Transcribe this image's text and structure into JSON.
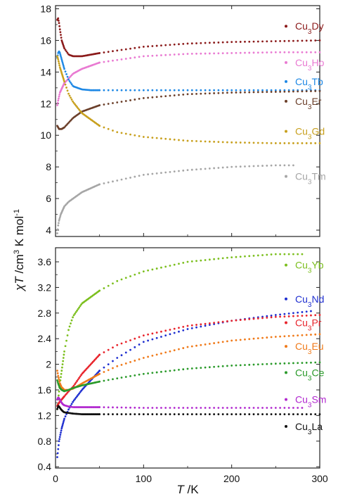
{
  "chart_data": [
    {
      "panel": "top",
      "type": "scatter",
      "ylim": [
        3.6,
        18.2
      ],
      "xlim": [
        0,
        300
      ],
      "yticks": [
        4,
        6,
        8,
        10,
        12,
        14,
        16,
        18
      ],
      "series": [
        {
          "name": "Cu3Dy",
          "sub": "3",
          "pre": "Cu",
          "post": "Dy",
          "color": "#8b1a1a",
          "x": [
            2,
            3,
            4,
            5,
            7,
            10,
            15,
            20,
            30,
            40,
            50,
            100,
            150,
            200,
            250,
            300
          ],
          "y": [
            17.3,
            17.4,
            17.1,
            16.7,
            16.0,
            15.5,
            15.1,
            15.0,
            15.0,
            15.1,
            15.2,
            15.6,
            15.8,
            15.9,
            15.95,
            16.0
          ]
        },
        {
          "name": "Cu3Ho",
          "sub": "3",
          "pre": "Cu",
          "post": "Ho",
          "color": "#e97ad2",
          "x": [
            2,
            3,
            5,
            10,
            20,
            30,
            50,
            100,
            150,
            200,
            250,
            300
          ],
          "y": [
            11.9,
            12.2,
            12.7,
            13.3,
            13.9,
            14.2,
            14.6,
            15.0,
            15.15,
            15.2,
            15.25,
            15.25
          ]
        },
        {
          "name": "Cu3Tb",
          "sub": "3",
          "pre": "Cu",
          "post": "Tb",
          "color": "#1e88e5",
          "x": [
            2,
            3,
            4,
            5,
            7,
            10,
            15,
            20,
            30,
            40,
            50,
            70,
            100,
            150,
            200,
            250,
            300
          ],
          "y": [
            14.9,
            15.2,
            15.3,
            15.2,
            14.8,
            14.2,
            13.5,
            13.1,
            12.9,
            12.85,
            12.85,
            12.85,
            12.85,
            12.85,
            12.85,
            12.85,
            12.85
          ]
        },
        {
          "name": "Cu3Er",
          "sub": "3",
          "pre": "Cu",
          "post": "Er",
          "color": "#6b3f2a",
          "x": [
            2,
            4,
            7,
            10,
            15,
            20,
            30,
            40,
            50,
            100,
            150,
            200,
            250,
            300
          ],
          "y": [
            10.6,
            10.4,
            10.4,
            10.5,
            10.8,
            11.1,
            11.5,
            11.7,
            11.9,
            12.35,
            12.6,
            12.7,
            12.75,
            12.8
          ]
        },
        {
          "name": "Cu3Gd",
          "sub": "3",
          "pre": "Cu",
          "post": "Gd",
          "color": "#c8a01e",
          "x": [
            2,
            3,
            5,
            10,
            15,
            20,
            30,
            50,
            70,
            100,
            150,
            200,
            250,
            300
          ],
          "y": [
            15.0,
            14.8,
            14.3,
            13.4,
            12.6,
            12.1,
            11.4,
            10.6,
            10.2,
            9.9,
            9.65,
            9.55,
            9.5,
            9.5
          ]
        },
        {
          "name": "Cu3Tm",
          "sub": "3",
          "pre": "Cu",
          "post": "Tm",
          "color": "#a6a6a6",
          "x": [
            2,
            3,
            4,
            6,
            10,
            15,
            20,
            30,
            50,
            100,
            150,
            200,
            250,
            270
          ],
          "y": [
            3.8,
            4.3,
            4.6,
            5.0,
            5.5,
            5.8,
            6.0,
            6.4,
            6.9,
            7.5,
            7.8,
            8.0,
            8.1,
            8.1
          ]
        }
      ],
      "legend": [
        {
          "key": "Cu3Dy",
          "y": 16.9
        },
        {
          "key": "Cu3Ho",
          "y": 14.6
        },
        {
          "key": "Cu3Tb",
          "y": 13.4
        },
        {
          "key": "Cu3Er",
          "y": 12.15
        },
        {
          "key": "Cu3Gd",
          "y": 10.25
        },
        {
          "key": "Cu3Tm",
          "y": 7.4
        }
      ]
    },
    {
      "panel": "bottom",
      "type": "scatter",
      "ylim": [
        0.38,
        3.82
      ],
      "xlim": [
        0,
        300
      ],
      "yticks": [
        0.4,
        0.8,
        1.2,
        1.6,
        2,
        2.4,
        2.8,
        3.2,
        3.6
      ],
      "xticks": [
        0,
        100,
        200,
        300
      ],
      "series": [
        {
          "name": "Cu3Yb",
          "sub": "3",
          "pre": "Cu",
          "post": "Yb",
          "color": "#7cbf1e",
          "x": [
            2,
            3,
            5,
            10,
            15,
            20,
            30,
            40,
            50,
            70,
            100,
            150,
            200,
            250,
            280
          ],
          "y": [
            1.3,
            1.45,
            1.7,
            2.2,
            2.55,
            2.75,
            2.95,
            3.05,
            3.15,
            3.3,
            3.45,
            3.6,
            3.67,
            3.72,
            3.72
          ]
        },
        {
          "name": "Cu3Nd",
          "sub": "3",
          "pre": "Cu",
          "post": "Nd",
          "color": "#1f2fd0",
          "x": [
            2,
            4,
            7,
            10,
            15,
            20,
            30,
            50,
            70,
            100,
            150,
            200,
            250,
            290
          ],
          "y": [
            0.55,
            0.8,
            1.0,
            1.15,
            1.3,
            1.42,
            1.6,
            1.9,
            2.1,
            2.35,
            2.55,
            2.68,
            2.77,
            2.83
          ]
        },
        {
          "name": "Cu3Pr",
          "sub": "3",
          "pre": "Cu",
          "post": "Pr",
          "color": "#e8242c",
          "x": [
            2,
            4,
            7,
            10,
            15,
            20,
            30,
            50,
            70,
            100,
            150,
            200,
            250,
            300
          ],
          "y": [
            1.35,
            1.4,
            1.45,
            1.5,
            1.58,
            1.65,
            1.85,
            2.15,
            2.3,
            2.45,
            2.6,
            2.68,
            2.74,
            2.77
          ]
        },
        {
          "name": "Cu3Eu",
          "sub": "3",
          "pre": "Cu",
          "post": "Eu",
          "color": "#f07a1a",
          "x": [
            2,
            3,
            5,
            7,
            10,
            15,
            20,
            30,
            50,
            70,
            100,
            150,
            200,
            250,
            300
          ],
          "y": [
            1.9,
            1.82,
            1.7,
            1.64,
            1.6,
            1.6,
            1.62,
            1.7,
            1.85,
            1.97,
            2.1,
            2.27,
            2.37,
            2.43,
            2.47
          ]
        },
        {
          "name": "Cu3Ce",
          "sub": "3",
          "pre": "Cu",
          "post": "Ce",
          "color": "#2a9a2a",
          "x": [
            2,
            3,
            5,
            7,
            10,
            15,
            20,
            30,
            50,
            70,
            100,
            150,
            200,
            250,
            300
          ],
          "y": [
            1.75,
            1.7,
            1.63,
            1.6,
            1.58,
            1.6,
            1.63,
            1.67,
            1.73,
            1.78,
            1.85,
            1.93,
            1.98,
            2.01,
            2.03
          ]
        },
        {
          "name": "Cu3Sm",
          "sub": "3",
          "pre": "Cu",
          "post": "Sm",
          "color": "#b128cf",
          "x": [
            2,
            3,
            4,
            6,
            8,
            10,
            15,
            20,
            30,
            50,
            100,
            150,
            200,
            250,
            280
          ],
          "y": [
            1.45,
            1.48,
            1.47,
            1.42,
            1.38,
            1.36,
            1.34,
            1.33,
            1.33,
            1.33,
            1.32,
            1.32,
            1.32,
            1.32,
            1.32
          ]
        },
        {
          "name": "Cu3La",
          "sub": "3",
          "pre": "Cu",
          "post": "La",
          "color": "#111111",
          "x": [
            2,
            3,
            4,
            6,
            8,
            10,
            15,
            20,
            30,
            50,
            100,
            150,
            200,
            250,
            300
          ],
          "y": [
            1.3,
            1.35,
            1.34,
            1.3,
            1.27,
            1.25,
            1.24,
            1.23,
            1.22,
            1.22,
            1.22,
            1.22,
            1.22,
            1.22,
            1.22
          ]
        }
      ],
      "legend": [
        {
          "key": "Cu3Yb",
          "y": 3.55
        },
        {
          "key": "Cu3Nd",
          "y": 3.02
        },
        {
          "key": "Cu3Pr",
          "y": 2.65
        },
        {
          "key": "Cu3Eu",
          "y": 2.28
        },
        {
          "key": "Cu3Ce",
          "y": 1.87
        },
        {
          "key": "Cu3Sm",
          "y": 1.45
        },
        {
          "key": "Cu3La",
          "y": 1.03
        }
      ]
    }
  ],
  "axes": {
    "ylabel_pre": "χ",
    "ylabel_T": "T",
    "ylabel_mid": " /cm",
    "ylabel_sup3": "3",
    "ylabel_mid2": " K mol",
    "ylabel_supm1": "-1",
    "xlabel_T": "T",
    "xlabel_unit": " /K"
  }
}
